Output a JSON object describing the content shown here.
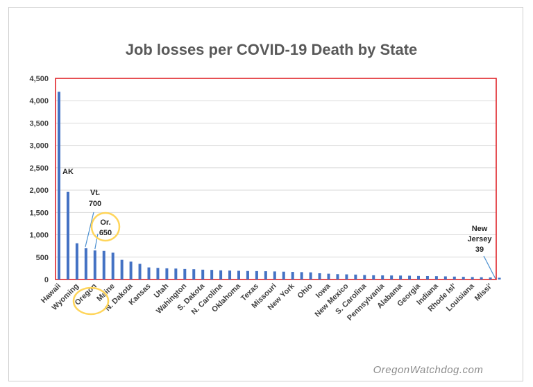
{
  "chart_data": {
    "type": "bar",
    "title": "Job losses per COVID-19 Death by State",
    "watermark": "OregonWatchdog.com",
    "ylim": [
      0,
      4500
    ],
    "yticks": [
      0,
      500,
      1000,
      1500,
      2000,
      2500,
      3000,
      3500,
      4000,
      4500
    ],
    "ytick_labels": [
      "0",
      "500",
      "1,000",
      "1,500",
      "2,000",
      "2,500",
      "3,000",
      "3,500",
      "4,000",
      "4,500"
    ],
    "grid": true,
    "bar_color": "#4472c4",
    "plot_border_color": "#e0242a",
    "highlight_color": "#ffd55a",
    "x_labels": [
      {
        "index": 0,
        "label": "Hawaii"
      },
      {
        "index": 2,
        "label": "Wyoming"
      },
      {
        "index": 4,
        "label": "Oregon"
      },
      {
        "index": 6,
        "label": "Maine"
      },
      {
        "index": 8,
        "label": "N. Dakota"
      },
      {
        "index": 10,
        "label": "Kansas"
      },
      {
        "index": 12,
        "label": "Utah"
      },
      {
        "index": 14,
        "label": "Wahington"
      },
      {
        "index": 16,
        "label": "S. Dakota"
      },
      {
        "index": 18,
        "label": "N. Carolina"
      },
      {
        "index": 20,
        "label": "Oklahoma"
      },
      {
        "index": 22,
        "label": "Texas"
      },
      {
        "index": 24,
        "label": "Missouri"
      },
      {
        "index": 26,
        "label": "New York"
      },
      {
        "index": 28,
        "label": "Ohio"
      },
      {
        "index": 30,
        "label": "Iowa"
      },
      {
        "index": 32,
        "label": "New Mexico"
      },
      {
        "index": 34,
        "label": "S. Carolina"
      },
      {
        "index": 36,
        "label": "Pennsylvania"
      },
      {
        "index": 38,
        "label": "Alabama"
      },
      {
        "index": 40,
        "label": "Georgia"
      },
      {
        "index": 42,
        "label": "Indiana"
      },
      {
        "index": 44,
        "label": "Rhode Isl'"
      },
      {
        "index": 46,
        "label": "Louisiana"
      },
      {
        "index": 48,
        "label": "Missi'"
      }
    ],
    "values": [
      4200,
      1960,
      810,
      700,
      650,
      640,
      600,
      440,
      400,
      350,
      270,
      260,
      250,
      245,
      235,
      230,
      220,
      215,
      205,
      200,
      195,
      190,
      188,
      185,
      180,
      175,
      170,
      165,
      160,
      140,
      130,
      120,
      115,
      110,
      100,
      95,
      92,
      90,
      88,
      85,
      80,
      78,
      75,
      70,
      65,
      60,
      55,
      50,
      45,
      39
    ],
    "annotations": {
      "ak": "AK",
      "vt": [
        "Vt.",
        "700"
      ],
      "or": [
        "Or.",
        "650"
      ],
      "nj": [
        "New",
        "Jersey",
        "39"
      ]
    }
  }
}
